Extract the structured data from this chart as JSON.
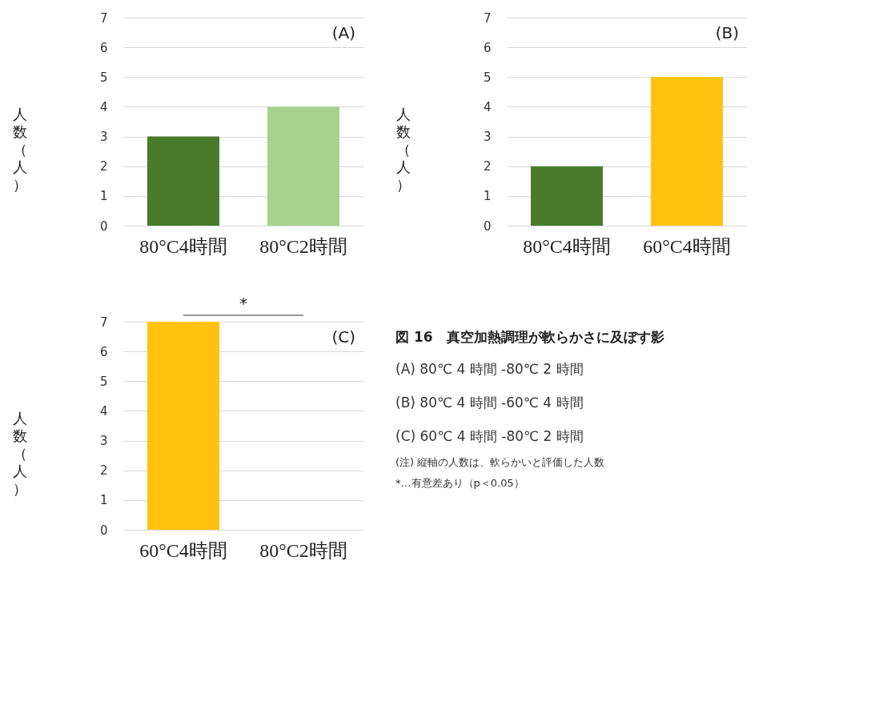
{
  "chart_data": [
    {
      "type": "bar",
      "categories": [
        "80°C4時間",
        "80°C2時間"
      ],
      "colors": [
        "#4a7b2b",
        "#a9d18e"
      ],
      "values": [
        3,
        4
      ],
      "ylabel": "人数（人）",
      "ylim": [
        0,
        7
      ],
      "yticks": [
        0,
        1,
        2,
        3,
        4,
        5,
        6,
        7
      ],
      "grid": "y",
      "annotations": [
        "(A)"
      ]
    },
    {
      "type": "bar",
      "categories": [
        "80°C4時間",
        "60°C4時間"
      ],
      "colors": [
        "#4a7b2b",
        "#ffc30f"
      ],
      "values": [
        2,
        5
      ],
      "ylabel": "人数（人）",
      "ylim": [
        0,
        7
      ],
      "yticks": [
        0,
        1,
        2,
        3,
        4,
        5,
        6,
        7
      ],
      "grid": "y",
      "annotations": [
        "(B)"
      ]
    },
    {
      "type": "bar",
      "categories": [
        "60°C4時間",
        "80°C2時間"
      ],
      "colors": [
        "#ffc30f",
        "#ffc30f"
      ],
      "values": [
        7,
        0
      ],
      "ylabel": "人数（人）",
      "ylim": [
        0,
        7
      ],
      "yticks": [
        0,
        1,
        2,
        3,
        4,
        5,
        6,
        7
      ],
      "grid": "y",
      "annotations": [
        "(C)",
        "*"
      ]
    },
    {
      "type": "other",
      "title": "図 16　真空加熱調理が軟らかさに及ぼす影",
      "annotations": [
        "(A)  80℃ 4 時間 -80℃ 2 時間",
        "(B)  80℃ 4 時間 -60℃ 4 時間",
        "(C)  60℃ 4 時間 -80℃ 2 時間",
        "(注) 縦軸の人数は、軟らかいと評価した人数",
        "　　*…有意差あり（p＜0.05）"
      ]
    }
  ]
}
